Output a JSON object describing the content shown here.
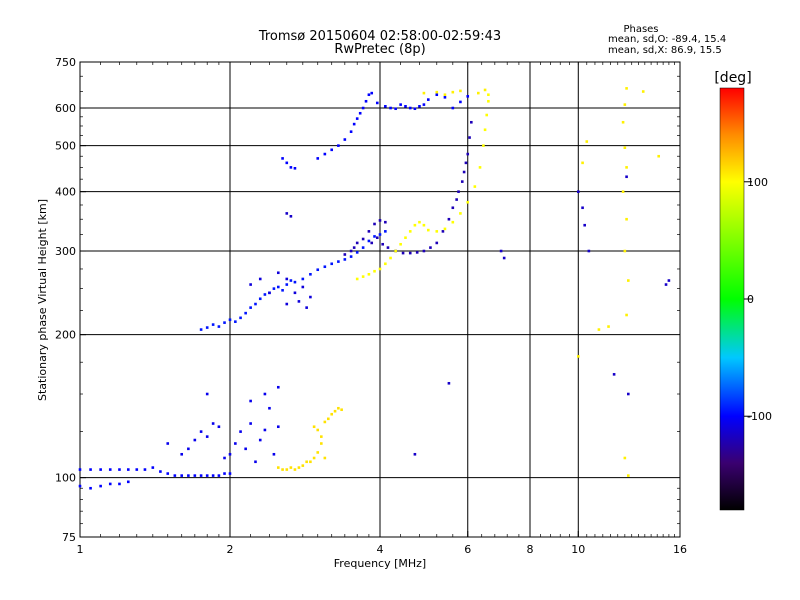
{
  "chart_data": {
    "type": "scatter",
    "title": "Tromsø 20150604 02:58:00-02:59:43",
    "subtitle": "RwPretec (8p)",
    "stats": {
      "heading": "Phases",
      "line_o": "mean, sd,O: -89.4, 15.4",
      "line_x": "mean, sd,X:  86.9, 15.5"
    },
    "xlabel": "Frequency [MHz]",
    "ylabel": "Stationary phase Virtual Height [km]",
    "xscale": "log",
    "yscale": "log",
    "xlim": [
      1,
      16
    ],
    "ylim": [
      75,
      750
    ],
    "x_ticks": [
      1,
      2,
      4,
      6,
      8,
      10,
      16
    ],
    "x_gridlines": [
      2,
      4,
      6,
      8,
      10
    ],
    "y_ticks": [
      75,
      100,
      200,
      300,
      400,
      500,
      600,
      750
    ],
    "y_gridlines": [
      100,
      200,
      300,
      400,
      500,
      600
    ],
    "grid": true,
    "colorbar": {
      "label": "[deg]",
      "range": [
        -180,
        180
      ],
      "ticks": [
        -100,
        0,
        100
      ],
      "colors": [
        "#000000",
        "#3a0070",
        "#0000ff",
        "#00c8ff",
        "#00ff00",
        "#ffff00",
        "#ff8c00",
        "#ff0000"
      ]
    },
    "series": [
      {
        "name": "",
        "phase": -100,
        "points": [
          [
            1.0,
            96
          ],
          [
            1.05,
            95
          ],
          [
            1.1,
            96
          ],
          [
            1.15,
            97
          ],
          [
            1.2,
            97
          ],
          [
            1.25,
            98
          ],
          [
            1.0,
            104
          ],
          [
            1.05,
            104
          ],
          [
            1.1,
            104
          ],
          [
            1.15,
            104
          ],
          [
            1.2,
            104
          ],
          [
            1.25,
            104
          ],
          [
            1.3,
            104
          ],
          [
            1.35,
            104
          ],
          [
            1.4,
            105
          ],
          [
            1.45,
            103
          ],
          [
            1.5,
            102
          ],
          [
            1.55,
            101
          ],
          [
            1.6,
            101
          ],
          [
            1.65,
            101
          ],
          [
            1.7,
            101
          ],
          [
            1.75,
            101
          ],
          [
            1.8,
            101
          ],
          [
            1.85,
            101
          ],
          [
            1.9,
            101
          ],
          [
            1.95,
            102
          ],
          [
            2.0,
            102
          ]
        ]
      },
      {
        "name": "",
        "phase": -105,
        "points": [
          [
            1.5,
            118
          ],
          [
            1.6,
            112
          ],
          [
            1.65,
            115
          ],
          [
            1.7,
            120
          ],
          [
            1.75,
            125
          ],
          [
            1.8,
            122
          ],
          [
            1.85,
            130
          ],
          [
            1.9,
            128
          ],
          [
            1.95,
            110
          ],
          [
            2.0,
            112
          ],
          [
            2.05,
            118
          ],
          [
            2.1,
            125
          ],
          [
            2.15,
            115
          ],
          [
            2.2,
            130
          ],
          [
            2.25,
            108
          ],
          [
            2.3,
            120
          ],
          [
            2.35,
            126
          ],
          [
            2.4,
            140
          ],
          [
            2.45,
            112
          ],
          [
            2.5,
            128
          ],
          [
            1.8,
            150
          ],
          [
            2.2,
            145
          ],
          [
            2.35,
            150
          ],
          [
            2.5,
            155
          ]
        ]
      },
      {
        "name": "",
        "phase": 110,
        "points": [
          [
            2.5,
            105
          ],
          [
            2.55,
            104
          ],
          [
            2.6,
            104
          ],
          [
            2.65,
            105
          ],
          [
            2.7,
            104
          ],
          [
            2.75,
            105
          ],
          [
            2.8,
            106
          ],
          [
            2.85,
            108
          ],
          [
            2.9,
            108
          ],
          [
            2.95,
            110
          ],
          [
            3.0,
            113
          ],
          [
            3.05,
            118
          ],
          [
            3.1,
            110
          ],
          [
            2.95,
            128
          ],
          [
            3.0,
            126
          ],
          [
            3.05,
            122
          ],
          [
            3.1,
            131
          ],
          [
            3.15,
            133
          ],
          [
            3.2,
            136
          ],
          [
            3.25,
            138
          ],
          [
            3.3,
            140
          ],
          [
            3.35,
            139
          ]
        ]
      },
      {
        "name": "",
        "phase": -95,
        "points": [
          [
            1.75,
            205
          ],
          [
            1.8,
            207
          ],
          [
            1.85,
            210
          ],
          [
            1.9,
            208
          ],
          [
            1.95,
            212
          ],
          [
            2.0,
            215
          ],
          [
            2.05,
            213
          ],
          [
            2.1,
            217
          ],
          [
            2.15,
            222
          ],
          [
            2.2,
            228
          ],
          [
            2.25,
            232
          ],
          [
            2.3,
            238
          ],
          [
            2.35,
            243
          ],
          [
            2.4,
            245
          ],
          [
            2.45,
            250
          ],
          [
            2.5,
            252
          ],
          [
            2.55,
            248
          ],
          [
            2.6,
            255
          ],
          [
            2.65,
            260
          ],
          [
            2.7,
            258
          ],
          [
            2.8,
            262
          ],
          [
            2.9,
            268
          ],
          [
            3.0,
            274
          ],
          [
            3.1,
            278
          ],
          [
            3.2,
            282
          ],
          [
            3.3,
            285
          ],
          [
            3.4,
            288
          ],
          [
            3.5,
            292
          ],
          [
            3.6,
            298
          ],
          [
            3.7,
            305
          ],
          [
            3.8,
            315
          ],
          [
            3.9,
            322
          ],
          [
            4.0,
            325
          ],
          [
            4.1,
            330
          ]
        ]
      },
      {
        "name": "",
        "phase": -110,
        "points": [
          [
            2.2,
            255
          ],
          [
            2.3,
            262
          ],
          [
            2.4,
            245
          ],
          [
            2.5,
            270
          ],
          [
            2.6,
            262
          ],
          [
            2.7,
            245
          ],
          [
            2.75,
            235
          ],
          [
            2.8,
            252
          ],
          [
            2.85,
            228
          ],
          [
            2.9,
            240
          ],
          [
            2.6,
            232
          ]
        ]
      },
      {
        "name": "",
        "phase": -120,
        "points": [
          [
            3.4,
            295
          ],
          [
            3.5,
            300
          ],
          [
            3.55,
            305
          ],
          [
            3.6,
            312
          ],
          [
            3.7,
            318
          ],
          [
            3.8,
            330
          ],
          [
            3.9,
            342
          ],
          [
            4.0,
            348
          ],
          [
            4.1,
            345
          ],
          [
            3.85,
            312
          ],
          [
            3.95,
            320
          ],
          [
            4.05,
            310
          ],
          [
            4.15,
            305
          ],
          [
            4.3,
            300
          ],
          [
            4.45,
            297
          ],
          [
            4.6,
            297
          ],
          [
            4.75,
            298
          ],
          [
            4.9,
            300
          ],
          [
            5.05,
            305
          ],
          [
            5.2,
            312
          ],
          [
            5.35,
            330
          ],
          [
            5.5,
            350
          ],
          [
            5.6,
            370
          ],
          [
            5.7,
            385
          ],
          [
            5.75,
            400
          ],
          [
            5.85,
            420
          ],
          [
            5.9,
            440
          ],
          [
            5.95,
            460
          ],
          [
            6.0,
            480
          ],
          [
            6.05,
            520
          ],
          [
            6.1,
            560
          ]
        ]
      },
      {
        "name": "",
        "phase": 100,
        "points": [
          [
            3.6,
            262
          ],
          [
            3.7,
            265
          ],
          [
            3.8,
            268
          ],
          [
            3.9,
            272
          ],
          [
            4.0,
            275
          ],
          [
            4.1,
            282
          ],
          [
            4.2,
            290
          ],
          [
            4.3,
            300
          ],
          [
            4.4,
            310
          ],
          [
            4.5,
            320
          ],
          [
            4.6,
            330
          ],
          [
            4.7,
            340
          ],
          [
            4.8,
            345
          ],
          [
            4.9,
            340
          ],
          [
            5.0,
            332
          ],
          [
            5.2,
            330
          ],
          [
            5.4,
            334
          ],
          [
            5.6,
            345
          ],
          [
            5.8,
            360
          ],
          [
            6.0,
            380
          ],
          [
            6.2,
            410
          ],
          [
            6.35,
            450
          ],
          [
            6.45,
            500
          ],
          [
            6.5,
            540
          ],
          [
            6.55,
            580
          ],
          [
            6.6,
            620
          ],
          [
            6.6,
            640
          ]
        ]
      },
      {
        "name": "",
        "phase": -100,
        "points": [
          [
            2.55,
            470
          ],
          [
            2.6,
            460
          ],
          [
            2.65,
            450
          ],
          [
            2.7,
            448
          ],
          [
            3.0,
            470
          ],
          [
            3.1,
            480
          ],
          [
            3.2,
            490
          ],
          [
            3.3,
            500
          ],
          [
            3.4,
            515
          ],
          [
            3.5,
            535
          ],
          [
            3.55,
            555
          ],
          [
            3.6,
            570
          ],
          [
            3.65,
            585
          ],
          [
            3.7,
            600
          ],
          [
            3.75,
            620
          ],
          [
            3.8,
            640
          ],
          [
            3.85,
            645
          ],
          [
            3.95,
            615
          ],
          [
            4.1,
            605
          ],
          [
            4.2,
            600
          ],
          [
            4.3,
            598
          ],
          [
            4.4,
            610
          ],
          [
            4.5,
            605
          ],
          [
            4.6,
            600
          ],
          [
            4.7,
            598
          ],
          [
            4.8,
            605
          ],
          [
            4.9,
            610
          ],
          [
            5.0,
            625
          ],
          [
            5.2,
            640
          ],
          [
            5.4,
            632
          ],
          [
            5.6,
            600
          ],
          [
            5.8,
            618
          ],
          [
            6.0,
            635
          ]
        ]
      },
      {
        "name": "",
        "phase": 105,
        "points": [
          [
            4.9,
            645
          ],
          [
            5.2,
            648
          ],
          [
            5.4,
            640
          ],
          [
            5.6,
            648
          ],
          [
            5.8,
            652
          ],
          [
            6.3,
            645
          ],
          [
            6.5,
            655
          ],
          [
            12.5,
            660
          ],
          [
            12.4,
            610
          ],
          [
            12.3,
            560
          ],
          [
            12.4,
            495
          ],
          [
            12.5,
            450
          ],
          [
            12.3,
            400
          ],
          [
            12.5,
            350
          ],
          [
            12.4,
            300
          ],
          [
            12.6,
            260
          ],
          [
            12.5,
            220
          ],
          [
            12.4,
            110
          ],
          [
            12.6,
            101
          ],
          [
            10.0,
            180
          ],
          [
            10.2,
            460
          ],
          [
            10.4,
            510
          ],
          [
            11.0,
            205
          ],
          [
            11.5,
            208
          ],
          [
            14.5,
            475
          ],
          [
            13.5,
            650
          ]
        ]
      },
      {
        "name": "",
        "phase": -115,
        "points": [
          [
            2.6,
            360
          ],
          [
            2.65,
            355
          ],
          [
            10.2,
            370
          ],
          [
            10.3,
            340
          ],
          [
            10.5,
            300
          ],
          [
            7.0,
            300
          ],
          [
            7.1,
            290
          ],
          [
            10.0,
            400
          ],
          [
            15.0,
            255
          ],
          [
            15.2,
            260
          ],
          [
            5.5,
            158
          ],
          [
            4.7,
            112
          ],
          [
            12.6,
            150
          ],
          [
            12.5,
            430
          ],
          [
            11.8,
            165
          ]
        ]
      }
    ]
  }
}
